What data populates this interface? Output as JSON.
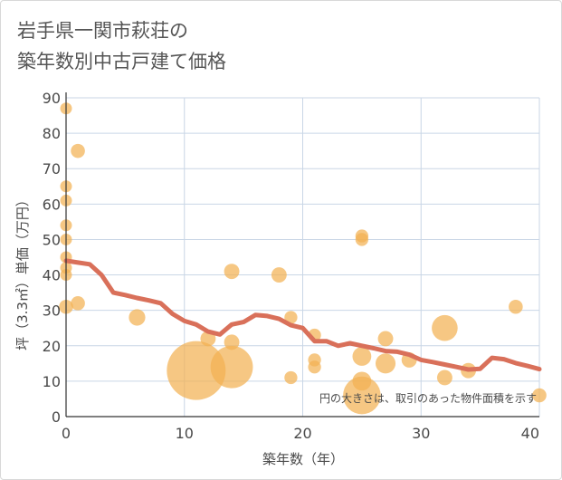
{
  "chart_data": {
    "type": "scatter",
    "title_line1": "岩手県一関市萩荘の",
    "title_line2": "築年数別中古戸建て価格",
    "xlabel": "築年数（年）",
    "ylabel": "坪（3.3㎡）単価（万円）",
    "note": "円の大きさは、取引のあった物件面積を示す",
    "xlim": [
      0,
      40
    ],
    "ylim": [
      0,
      90
    ],
    "x_ticks": [
      0,
      10,
      20,
      30,
      40
    ],
    "y_ticks": [
      0,
      10,
      20,
      30,
      40,
      50,
      60,
      70,
      80,
      90
    ],
    "colors": {
      "point": "#f2b253",
      "line": "#d9705a",
      "grid": "#c9d6e6"
    },
    "points": [
      {
        "x": 0,
        "y": 87,
        "size": 1
      },
      {
        "x": 0,
        "y": 65,
        "size": 1
      },
      {
        "x": 0,
        "y": 61,
        "size": 1
      },
      {
        "x": 0,
        "y": 54,
        "size": 1
      },
      {
        "x": 0,
        "y": 50,
        "size": 1
      },
      {
        "x": 0,
        "y": 45,
        "size": 1
      },
      {
        "x": 0,
        "y": 42,
        "size": 1
      },
      {
        "x": 0,
        "y": 40,
        "size": 1
      },
      {
        "x": 0,
        "y": 31,
        "size": 1.2
      },
      {
        "x": 1,
        "y": 75,
        "size": 1.2
      },
      {
        "x": 1,
        "y": 32,
        "size": 1.2
      },
      {
        "x": 6,
        "y": 28,
        "size": 1.4
      },
      {
        "x": 11,
        "y": 13,
        "size": 5
      },
      {
        "x": 12,
        "y": 22,
        "size": 1.3
      },
      {
        "x": 14,
        "y": 41,
        "size": 1.3
      },
      {
        "x": 14,
        "y": 21,
        "size": 1.3
      },
      {
        "x": 14,
        "y": 14,
        "size": 3.6
      },
      {
        "x": 18,
        "y": 40,
        "size": 1.3
      },
      {
        "x": 19,
        "y": 28,
        "size": 1.1
      },
      {
        "x": 19,
        "y": 11,
        "size": 1.1
      },
      {
        "x": 21,
        "y": 23,
        "size": 1.1
      },
      {
        "x": 21,
        "y": 16,
        "size": 1.1
      },
      {
        "x": 21,
        "y": 14,
        "size": 1.1
      },
      {
        "x": 25,
        "y": 51,
        "size": 1.1
      },
      {
        "x": 25,
        "y": 50,
        "size": 1.1
      },
      {
        "x": 25,
        "y": 17,
        "size": 1.6
      },
      {
        "x": 25,
        "y": 10,
        "size": 1.6
      },
      {
        "x": 25,
        "y": 6,
        "size": 3.2
      },
      {
        "x": 27,
        "y": 22,
        "size": 1.3
      },
      {
        "x": 27,
        "y": 15,
        "size": 1.7
      },
      {
        "x": 29,
        "y": 16,
        "size": 1.3
      },
      {
        "x": 32,
        "y": 25,
        "size": 2.2
      },
      {
        "x": 32,
        "y": 11,
        "size": 1.3
      },
      {
        "x": 34,
        "y": 13,
        "size": 1.3
      },
      {
        "x": 38,
        "y": 31,
        "size": 1.2
      },
      {
        "x": 40,
        "y": 6,
        "size": 1.2
      }
    ],
    "trend": {
      "x": [
        0,
        1,
        2,
        3,
        4,
        5,
        6,
        7,
        8,
        9,
        10,
        11,
        12,
        13,
        14,
        15,
        16,
        17,
        18,
        19,
        20,
        21,
        22,
        23,
        24,
        25,
        26,
        27,
        28,
        29,
        30,
        31,
        32,
        33,
        34,
        35,
        36,
        37,
        38,
        39,
        40
      ],
      "y": [
        44,
        43.5,
        43,
        40,
        35,
        34.3,
        33.5,
        32.8,
        32,
        29,
        27,
        26,
        24,
        23.2,
        26,
        26.7,
        28.7,
        28.4,
        27.6,
        25.8,
        25,
        21.3,
        21.3,
        20,
        20.7,
        20,
        19.3,
        18.5,
        18.3,
        17.5,
        16,
        15.4,
        14.7,
        14,
        13.3,
        13.5,
        16.6,
        16.2,
        15.1,
        14.3,
        13.4
      ]
    }
  }
}
